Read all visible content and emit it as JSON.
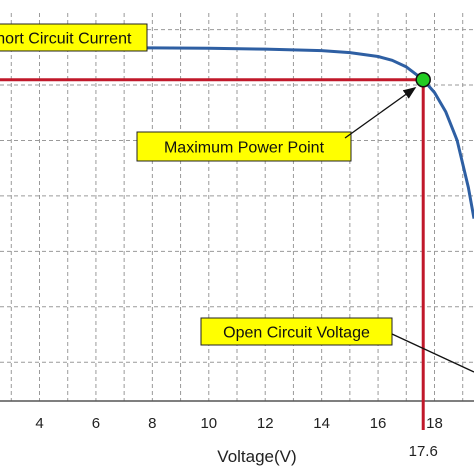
{
  "chart_data": {
    "type": "line",
    "title": "",
    "xlabel": "Voltage(V)",
    "ylabel": "",
    "xlim": [
      2.6,
      19.4
    ],
    "ylim": [
      0,
      1.0
    ],
    "grid": true,
    "x_ticks": [
      4,
      6,
      8,
      10,
      12,
      14,
      16,
      18
    ],
    "x_tick_labels": [
      "4",
      "6",
      "8",
      "10",
      "12",
      "14",
      "16",
      "18"
    ],
    "series": [
      {
        "name": "",
        "color": "#2e5fa3",
        "x": [
          2.6,
          4,
          6,
          8,
          10,
          12,
          14,
          15,
          16,
          16.5,
          17,
          17.6,
          18,
          18.4,
          18.8,
          19.2,
          19.4
        ],
        "y": [
          0.91,
          0.91,
          0.91,
          0.91,
          0.909,
          0.907,
          0.903,
          0.898,
          0.888,
          0.878,
          0.861,
          0.828,
          0.795,
          0.745,
          0.672,
          0.55,
          0.47
        ]
      }
    ],
    "max_power_point": {
      "x": 17.6,
      "y": 0.828,
      "x_label": "17.6",
      "color": "#22cc22"
    },
    "guide_color": "#c0182a",
    "annotations": [
      {
        "text": "Short Circuit Current"
      },
      {
        "text": "Maximum Power Point"
      },
      {
        "text": "Open Circuit Voltage"
      }
    ],
    "callout_fill": "#ffff00"
  }
}
